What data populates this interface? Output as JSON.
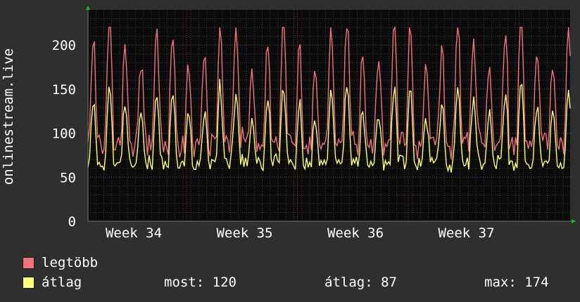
{
  "chart_data": {
    "type": "line",
    "ylabel": "onlinestream.live",
    "ylim": [
      0,
      240
    ],
    "yticks": [
      0,
      50,
      100,
      150,
      200
    ],
    "xticks": [
      "Week 34",
      "Week 35",
      "Week 36",
      "Week 37"
    ],
    "grid": true,
    "series": [
      {
        "name": "legtöbb",
        "color": "#f0737d"
      },
      {
        "name": "átlag",
        "color": "#ffff7a"
      }
    ]
  },
  "legend": {
    "items": [
      {
        "label": "legtöbb",
        "color": "#f0737d"
      },
      {
        "label": "átlag",
        "color": "#ffff7a"
      }
    ],
    "stats": {
      "now": "most: 120",
      "avg": "átlag: 87",
      "max": "max: 174"
    }
  },
  "colors": {
    "background": "#2f2f2f",
    "plot_background": "#0b0b0b",
    "grid": "#3a3a3a",
    "vertical_marker": "#8a2a2a",
    "axis_arrow": "#00cc00"
  }
}
